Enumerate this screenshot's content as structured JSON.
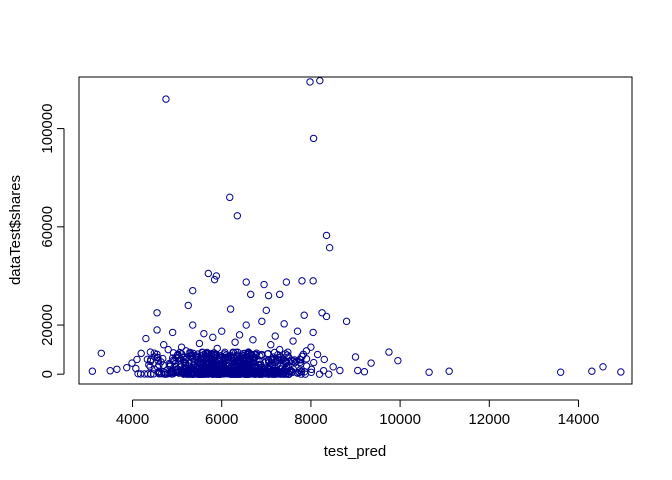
{
  "chart_data": {
    "type": "scatter",
    "xlabel": "test_pred",
    "ylabel": "dataTest$shares",
    "xlim": [
      2800,
      15200
    ],
    "ylim": [
      -4000,
      121000
    ],
    "xticks": [
      4000,
      6000,
      8000,
      10000,
      12000,
      14000
    ],
    "yticks": [
      0,
      20000,
      60000,
      100000
    ],
    "point_color": "#00008B",
    "points": [
      {
        "x": 4750,
        "y": 112000
      },
      {
        "x": 7980,
        "y": 119000
      },
      {
        "x": 8200,
        "y": 119500
      },
      {
        "x": 8060,
        "y": 96000
      },
      {
        "x": 6180,
        "y": 72000
      },
      {
        "x": 6350,
        "y": 64500
      },
      {
        "x": 8350,
        "y": 56500
      },
      {
        "x": 8420,
        "y": 51500
      },
      {
        "x": 5700,
        "y": 41000
      },
      {
        "x": 5880,
        "y": 40000
      },
      {
        "x": 5840,
        "y": 38500
      },
      {
        "x": 6550,
        "y": 37500
      },
      {
        "x": 7450,
        "y": 37500
      },
      {
        "x": 7800,
        "y": 38000
      },
      {
        "x": 8050,
        "y": 38000
      },
      {
        "x": 6950,
        "y": 36500
      },
      {
        "x": 5350,
        "y": 34000
      },
      {
        "x": 6650,
        "y": 32500
      },
      {
        "x": 7300,
        "y": 32500
      },
      {
        "x": 7050,
        "y": 32000
      },
      {
        "x": 8250,
        "y": 25000
      },
      {
        "x": 8350,
        "y": 23500
      },
      {
        "x": 7850,
        "y": 24000
      },
      {
        "x": 4550,
        "y": 25000
      },
      {
        "x": 5250,
        "y": 28000
      },
      {
        "x": 6200,
        "y": 26500
      },
      {
        "x": 7000,
        "y": 26000
      },
      {
        "x": 8800,
        "y": 21500
      },
      {
        "x": 7400,
        "y": 20500
      },
      {
        "x": 6900,
        "y": 21500
      },
      {
        "x": 6550,
        "y": 20000
      },
      {
        "x": 5350,
        "y": 20000
      },
      {
        "x": 8050,
        "y": 17000
      },
      {
        "x": 7700,
        "y": 17500
      },
      {
        "x": 4550,
        "y": 18000
      },
      {
        "x": 4900,
        "y": 17000
      },
      {
        "x": 6000,
        "y": 17500
      },
      {
        "x": 5600,
        "y": 16500
      },
      {
        "x": 3300,
        "y": 8500
      },
      {
        "x": 9000,
        "y": 7000
      },
      {
        "x": 9750,
        "y": 9000
      },
      {
        "x": 9950,
        "y": 5500
      },
      {
        "x": 9350,
        "y": 4500
      },
      {
        "x": 10650,
        "y": 800
      },
      {
        "x": 11100,
        "y": 1200
      },
      {
        "x": 13600,
        "y": 800
      },
      {
        "x": 14300,
        "y": 1200
      },
      {
        "x": 14550,
        "y": 3000
      },
      {
        "x": 14950,
        "y": 900
      },
      {
        "x": 3100,
        "y": 1200
      },
      {
        "x": 3500,
        "y": 1400
      },
      {
        "x": 3650,
        "y": 2000
      },
      {
        "x": 9050,
        "y": 1500
      },
      {
        "x": 9200,
        "y": 1000
      },
      {
        "x": 8650,
        "y": 1500
      },
      {
        "x": 8500,
        "y": 3000
      },
      {
        "x": 4300,
        "y": 14500
      },
      {
        "x": 4700,
        "y": 12000
      },
      {
        "x": 5100,
        "y": 11000
      },
      {
        "x": 5500,
        "y": 12500
      },
      {
        "x": 6300,
        "y": 13000
      },
      {
        "x": 6700,
        "y": 14000
      },
      {
        "x": 7100,
        "y": 12000
      },
      {
        "x": 7600,
        "y": 13500
      },
      {
        "x": 8000,
        "y": 11000
      },
      {
        "x": 5800,
        "y": 15000
      },
      {
        "x": 6400,
        "y": 16000
      },
      {
        "x": 7200,
        "y": 15500
      },
      {
        "x": 4400,
        "y": 9000
      },
      {
        "x": 4800,
        "y": 10000
      },
      {
        "x": 5200,
        "y": 9500
      },
      {
        "x": 5900,
        "y": 10500
      },
      {
        "x": 6600,
        "y": 9000
      },
      {
        "x": 7300,
        "y": 10000
      },
      {
        "x": 7900,
        "y": 9500
      },
      {
        "x": 8150,
        "y": 8000
      },
      {
        "x": 8300,
        "y": 6000
      },
      {
        "x": 4100,
        "y": 6000
      },
      {
        "x": 4500,
        "y": 7000
      },
      {
        "x": 5000,
        "y": 7500
      },
      {
        "x": 5600,
        "y": 8000
      },
      {
        "x": 6200,
        "y": 7500
      },
      {
        "x": 6900,
        "y": 8000
      },
      {
        "x": 7500,
        "y": 7000
      }
    ],
    "dense_cluster": {
      "x_range": [
        3600,
        8600
      ],
      "y_range": [
        0,
        9000
      ],
      "count": 700,
      "center_x": 5900
    }
  }
}
